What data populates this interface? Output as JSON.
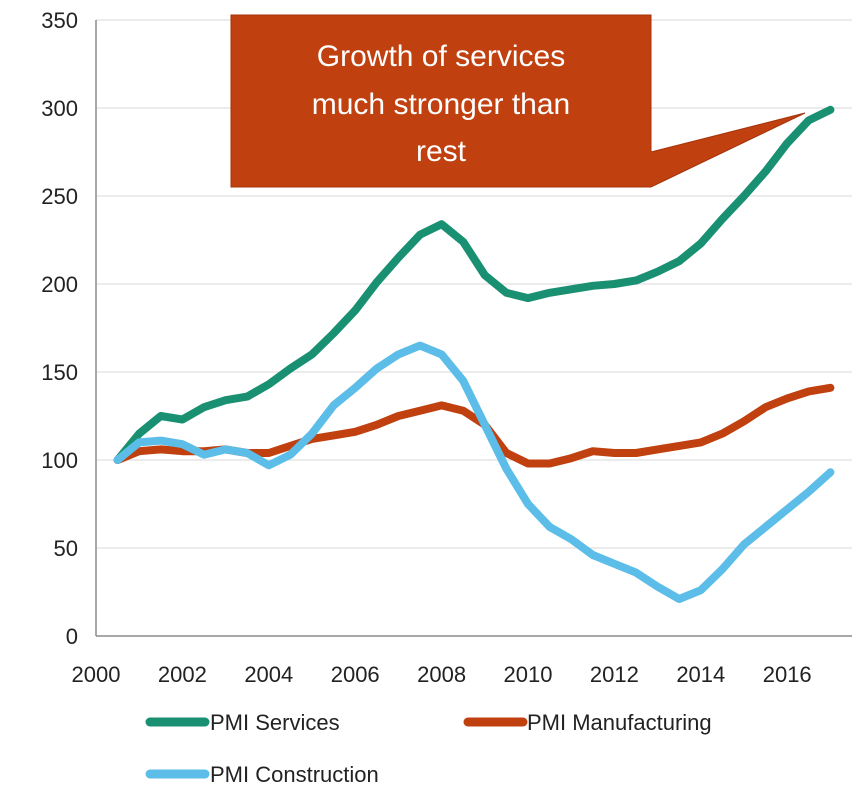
{
  "chart_data": {
    "type": "line",
    "title": "",
    "xlabel": "",
    "ylabel": "",
    "xlim": [
      2000,
      2017
    ],
    "ylim": [
      0,
      350
    ],
    "yticks": [
      0,
      50,
      100,
      150,
      200,
      250,
      300,
      350
    ],
    "xticks": [
      2000,
      2002,
      2004,
      2006,
      2008,
      2010,
      2012,
      2014,
      2016
    ],
    "grid": "horizontal",
    "legend_position": "bottom",
    "annotation": {
      "lines": [
        "Growth of services",
        "much stronger than",
        "rest"
      ],
      "color": "#C0400F"
    },
    "series": [
      {
        "name": "PMI Services",
        "color": "#1A9072",
        "points": [
          [
            2000.5,
            100
          ],
          [
            2001.0,
            115
          ],
          [
            2001.5,
            125
          ],
          [
            2002.0,
            123
          ],
          [
            2002.5,
            130
          ],
          [
            2003.0,
            134
          ],
          [
            2003.5,
            136
          ],
          [
            2004.0,
            143
          ],
          [
            2004.5,
            152
          ],
          [
            2005.0,
            160
          ],
          [
            2005.5,
            172
          ],
          [
            2006.0,
            185
          ],
          [
            2006.5,
            201
          ],
          [
            2007.0,
            215
          ],
          [
            2007.5,
            228
          ],
          [
            2008.0,
            234
          ],
          [
            2008.5,
            224
          ],
          [
            2009.0,
            205
          ],
          [
            2009.5,
            195
          ],
          [
            2010.0,
            192
          ],
          [
            2010.5,
            195
          ],
          [
            2011.0,
            197
          ],
          [
            2011.5,
            199
          ],
          [
            2012.0,
            200
          ],
          [
            2012.5,
            202
          ],
          [
            2013.0,
            207
          ],
          [
            2013.5,
            213
          ],
          [
            2014.0,
            223
          ],
          [
            2014.5,
            237
          ],
          [
            2015.0,
            250
          ],
          [
            2015.5,
            264
          ],
          [
            2016.0,
            280
          ],
          [
            2016.5,
            293
          ],
          [
            2017.0,
            299
          ]
        ]
      },
      {
        "name": "PMI Manufacturing",
        "color": "#C0400F",
        "points": [
          [
            2000.5,
            100
          ],
          [
            2001.0,
            105
          ],
          [
            2001.5,
            106
          ],
          [
            2002.0,
            105
          ],
          [
            2002.5,
            105
          ],
          [
            2003.0,
            106
          ],
          [
            2003.5,
            104
          ],
          [
            2004.0,
            104
          ],
          [
            2004.5,
            108
          ],
          [
            2005.0,
            112
          ],
          [
            2005.5,
            114
          ],
          [
            2006.0,
            116
          ],
          [
            2006.5,
            120
          ],
          [
            2007.0,
            125
          ],
          [
            2007.5,
            128
          ],
          [
            2008.0,
            131
          ],
          [
            2008.5,
            128
          ],
          [
            2009.0,
            120
          ],
          [
            2009.5,
            104
          ],
          [
            2010.0,
            98
          ],
          [
            2010.5,
            98
          ],
          [
            2011.0,
            101
          ],
          [
            2011.5,
            105
          ],
          [
            2012.0,
            104
          ],
          [
            2012.5,
            104
          ],
          [
            2013.0,
            106
          ],
          [
            2013.5,
            108
          ],
          [
            2014.0,
            110
          ],
          [
            2014.5,
            115
          ],
          [
            2015.0,
            122
          ],
          [
            2015.5,
            130
          ],
          [
            2016.0,
            135
          ],
          [
            2016.5,
            139
          ],
          [
            2017.0,
            141
          ]
        ]
      },
      {
        "name": "PMI Construction",
        "color": "#5BBDE8",
        "points": [
          [
            2000.5,
            100
          ],
          [
            2001.0,
            110
          ],
          [
            2001.5,
            111
          ],
          [
            2002.0,
            109
          ],
          [
            2002.5,
            103
          ],
          [
            2003.0,
            106
          ],
          [
            2003.5,
            104
          ],
          [
            2004.0,
            97
          ],
          [
            2004.5,
            103
          ],
          [
            2005.0,
            115
          ],
          [
            2005.5,
            131
          ],
          [
            2006.0,
            141
          ],
          [
            2006.5,
            152
          ],
          [
            2007.0,
            160
          ],
          [
            2007.5,
            165
          ],
          [
            2008.0,
            160
          ],
          [
            2008.5,
            145
          ],
          [
            2009.0,
            120
          ],
          [
            2009.5,
            95
          ],
          [
            2010.0,
            75
          ],
          [
            2010.5,
            62
          ],
          [
            2011.0,
            55
          ],
          [
            2011.5,
            46
          ],
          [
            2012.0,
            41
          ],
          [
            2012.5,
            36
          ],
          [
            2013.0,
            28
          ],
          [
            2013.5,
            21
          ],
          [
            2014.0,
            26
          ],
          [
            2014.5,
            38
          ],
          [
            2015.0,
            52
          ],
          [
            2015.5,
            62
          ],
          [
            2016.0,
            72
          ],
          [
            2016.5,
            82
          ],
          [
            2017.0,
            93
          ]
        ]
      }
    ]
  }
}
